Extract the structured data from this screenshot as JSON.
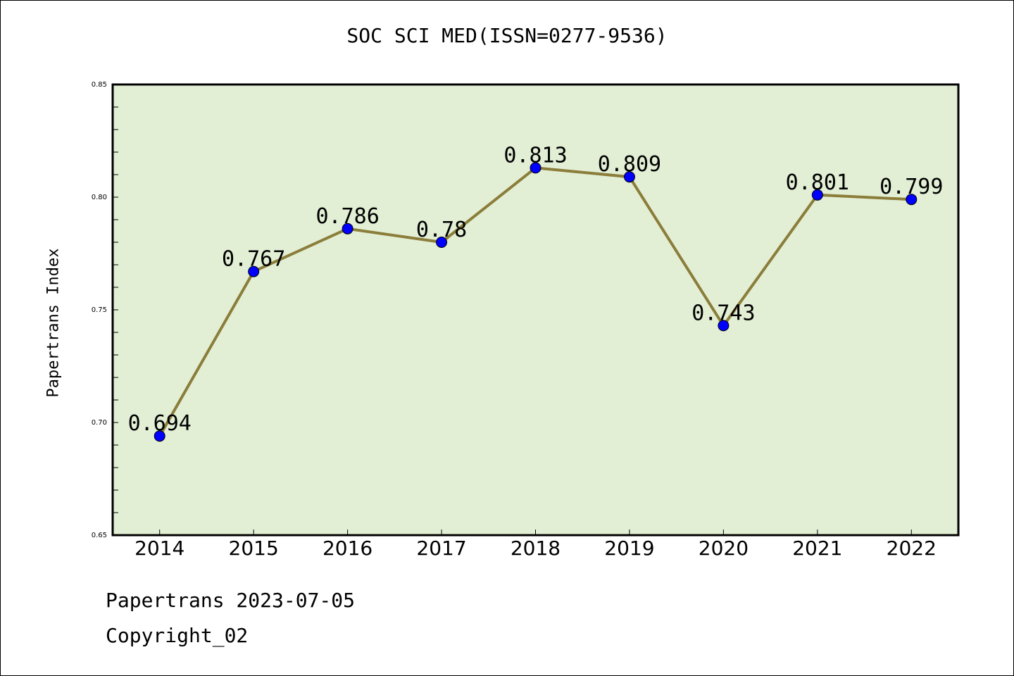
{
  "chart_data": {
    "type": "line",
    "title": "SOC SCI MED(ISSN=0277-9536)",
    "ylabel": "Papertrans Index",
    "xlabel": "",
    "categories": [
      "2014",
      "2015",
      "2016",
      "2017",
      "2018",
      "2019",
      "2020",
      "2021",
      "2022"
    ],
    "values": [
      0.694,
      0.767,
      0.786,
      0.78,
      0.813,
      0.809,
      0.743,
      0.801,
      0.799
    ],
    "data_labels": [
      "0.694",
      "0.767",
      "0.786",
      "0.78",
      "0.813",
      "0.809",
      "0.743",
      "0.801",
      "0.799"
    ],
    "ylim": [
      0.65,
      0.85
    ],
    "yticks": [
      "0.65",
      "0.70",
      "0.75",
      "0.80",
      "0.85"
    ],
    "grid": false,
    "colors": {
      "plot_background": "#e2efd5",
      "line": "#8b7d3a",
      "marker": "#0000ff"
    }
  },
  "footer": {
    "line1": "Papertrans 2023-07-05",
    "line2": "Copyright_02"
  }
}
